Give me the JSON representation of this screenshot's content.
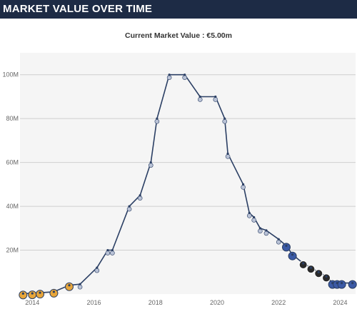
{
  "header": {
    "title": "MARKET VALUE OVER TIME"
  },
  "subtitle": "Current Market Value : €5.00m",
  "colors": {
    "header_bg": "#1d2b45",
    "line": "#2b3f64",
    "grid": "#cfcfcf",
    "plot_bg": "#f5f5f5",
    "marker_gold": "#e8a63a",
    "marker_blue": "#3b5aa6",
    "marker_white": "#b9c2d6",
    "marker_black": "#2a2a2a"
  },
  "chart_data": {
    "type": "line",
    "title": "",
    "xlabel": "",
    "ylabel": "",
    "xlim": [
      2013.6,
      2024.5
    ],
    "ylim": [
      0,
      110
    ],
    "grid": "horizontal",
    "y_ticks": [
      {
        "value": 20,
        "label": "20M"
      },
      {
        "value": 40,
        "label": "40M"
      },
      {
        "value": 60,
        "label": "60M"
      },
      {
        "value": 80,
        "label": "80M"
      },
      {
        "value": 100,
        "label": "100M"
      }
    ],
    "x_ticks": [
      {
        "value": 2014,
        "label": "2014"
      },
      {
        "value": 2016,
        "label": "2016"
      },
      {
        "value": 2018,
        "label": "2018"
      },
      {
        "value": 2020,
        "label": "2020"
      },
      {
        "value": 2022,
        "label": "2022"
      },
      {
        "value": 2024,
        "label": "2024"
      }
    ],
    "series": [
      {
        "unit": "€m",
        "points": [
          {
            "x": 2013.7,
            "y": 0.2,
            "club": "gold"
          },
          {
            "x": 2014.0,
            "y": 0.3,
            "club": "gold"
          },
          {
            "x": 2014.25,
            "y": 0.6,
            "club": "gold"
          },
          {
            "x": 2014.7,
            "y": 1.0,
            "club": "gold"
          },
          {
            "x": 2015.2,
            "y": 4.0,
            "club": "gold"
          },
          {
            "x": 2015.55,
            "y": 4.5,
            "club": "white"
          },
          {
            "x": 2016.1,
            "y": 12,
            "club": "white"
          },
          {
            "x": 2016.45,
            "y": 20,
            "club": "white"
          },
          {
            "x": 2016.6,
            "y": 20,
            "club": "white"
          },
          {
            "x": 2017.15,
            "y": 40,
            "club": "white"
          },
          {
            "x": 2017.5,
            "y": 45,
            "club": "white"
          },
          {
            "x": 2017.85,
            "y": 60,
            "club": "white"
          },
          {
            "x": 2018.05,
            "y": 80,
            "club": "white"
          },
          {
            "x": 2018.45,
            "y": 100,
            "club": "white"
          },
          {
            "x": 2018.95,
            "y": 100,
            "club": "white"
          },
          {
            "x": 2019.45,
            "y": 90,
            "club": "white"
          },
          {
            "x": 2019.95,
            "y": 90,
            "club": "white"
          },
          {
            "x": 2020.25,
            "y": 80,
            "club": "white"
          },
          {
            "x": 2020.35,
            "y": 64,
            "club": "white"
          },
          {
            "x": 2020.85,
            "y": 50,
            "club": "white"
          },
          {
            "x": 2021.05,
            "y": 37,
            "club": "white"
          },
          {
            "x": 2021.2,
            "y": 35,
            "club": "white"
          },
          {
            "x": 2021.4,
            "y": 30,
            "club": "white"
          },
          {
            "x": 2021.6,
            "y": 29,
            "club": "white"
          },
          {
            "x": 2022.0,
            "y": 25,
            "club": "white"
          },
          {
            "x": 2022.25,
            "y": 22,
            "club": "blue"
          },
          {
            "x": 2022.45,
            "y": 18,
            "club": "blue"
          },
          {
            "x": 2022.8,
            "y": 14,
            "club": "black"
          },
          {
            "x": 2023.05,
            "y": 12,
            "club": "black"
          },
          {
            "x": 2023.3,
            "y": 10,
            "club": "black"
          },
          {
            "x": 2023.55,
            "y": 8,
            "club": "black"
          },
          {
            "x": 2023.75,
            "y": 5,
            "club": "blue"
          },
          {
            "x": 2023.9,
            "y": 5,
            "club": "blue"
          },
          {
            "x": 2024.05,
            "y": 5,
            "club": "blue"
          },
          {
            "x": 2024.4,
            "y": 5,
            "club": "blue"
          }
        ]
      }
    ]
  }
}
